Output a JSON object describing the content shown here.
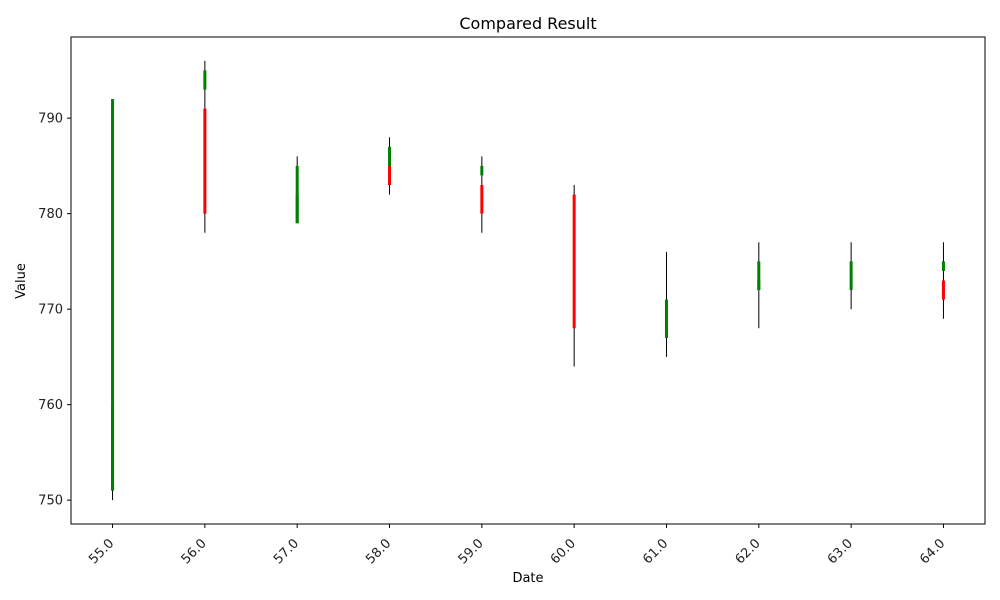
{
  "chart_data": {
    "type": "candlestick",
    "title": "Compared Result",
    "xlabel": "Date",
    "ylabel": "Value",
    "ylim": [
      747.5,
      798.5
    ],
    "yticks": [
      750,
      760,
      770,
      780,
      790
    ],
    "xlim": [
      54.55,
      64.45
    ],
    "up_color": "#008000",
    "down_color": "#ff0000",
    "wick_color": "#000000",
    "candles": [
      {
        "x": 55.0,
        "label": "55.0",
        "high": 792,
        "low": 750,
        "series": [
          {
            "open": 751,
            "close": 792
          },
          {
            "open": 751,
            "close": 760
          }
        ]
      },
      {
        "x": 56.0,
        "label": "56.0",
        "high": 796,
        "low": 778,
        "series": [
          {
            "open": 791,
            "close": 780
          },
          {
            "open": 793,
            "close": 795
          }
        ]
      },
      {
        "x": 57.0,
        "label": "57.0",
        "high": 786,
        "low": 779,
        "series": [
          {
            "open": 779,
            "close": 785
          },
          {
            "open": 779,
            "close": 782
          }
        ]
      },
      {
        "x": 58.0,
        "label": "58.0",
        "high": 788,
        "low": 782,
        "series": [
          {
            "open": 785,
            "close": 783
          },
          {
            "open": 785,
            "close": 787
          }
        ]
      },
      {
        "x": 59.0,
        "label": "59.0",
        "high": 786,
        "low": 778,
        "series": [
          {
            "open": 783,
            "close": 780
          },
          {
            "open": 784,
            "close": 785
          }
        ]
      },
      {
        "x": 60.0,
        "label": "60.0",
        "high": 783,
        "low": 764,
        "series": [
          {
            "open": 782,
            "close": 768
          }
        ]
      },
      {
        "x": 61.0,
        "label": "61.0",
        "high": 776,
        "low": 765,
        "series": [
          {
            "open": 767,
            "close": 771
          },
          {
            "open": 767,
            "close": 768
          }
        ]
      },
      {
        "x": 62.0,
        "label": "62.0",
        "high": 777,
        "low": 768,
        "series": [
          {
            "open": 772,
            "close": 773
          },
          {
            "open": 772,
            "close": 775
          }
        ]
      },
      {
        "x": 63.0,
        "label": "63.0",
        "high": 777,
        "low": 770,
        "series": [
          {
            "open": 772,
            "close": 774
          },
          {
            "open": 774,
            "close": 775
          }
        ]
      },
      {
        "x": 64.0,
        "label": "64.0",
        "high": 777,
        "low": 769,
        "series": [
          {
            "open": 773,
            "close": 771
          },
          {
            "open": 774,
            "close": 775
          }
        ]
      }
    ]
  }
}
